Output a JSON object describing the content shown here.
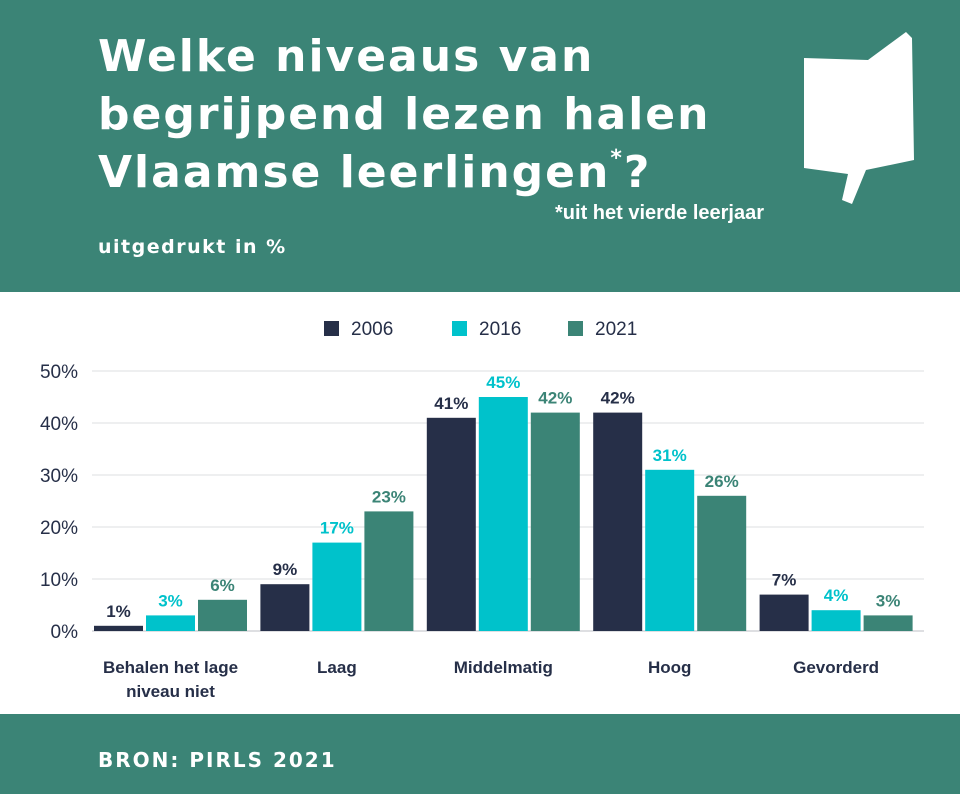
{
  "header": {
    "title_main": "Welke niveaus van begrijpend lezen halen Vlaamse leerlingen",
    "title_mark": "*",
    "title_end": "?",
    "footnote": "*uit het vierde leerjaar",
    "subtitle": "uitgedrukt in %"
  },
  "footer": {
    "source": "BRON: PIRLS 2021"
  },
  "colors": {
    "header_bg": "#3b8476",
    "series_2006": "#262f48",
    "series_2016": "#00c2cb",
    "series_2021": "#3b8476"
  },
  "icons": {
    "logo": "open-book-speech-bubble-icon"
  },
  "chart_data": {
    "type": "bar",
    "categories": [
      "Behalen het lage niveau niet",
      "Laag",
      "Middelmatig",
      "Hoog",
      "Gevorderd"
    ],
    "series": [
      {
        "name": "2006",
        "values": [
          1,
          9,
          41,
          42,
          7
        ],
        "color": "#262f48"
      },
      {
        "name": "2016",
        "values": [
          3,
          17,
          45,
          31,
          4
        ],
        "color": "#00c2cb"
      },
      {
        "name": "2021",
        "values": [
          6,
          23,
          42,
          26,
          3
        ],
        "color": "#3b8476"
      }
    ],
    "value_suffix": "%",
    "ylim": [
      0,
      50
    ],
    "yticks": [
      0,
      10,
      20,
      30,
      40,
      50
    ],
    "ytick_labels": [
      "0%",
      "10%",
      "20%",
      "30%",
      "40%",
      "50%"
    ],
    "legend_position": "top-center",
    "grid": true
  }
}
